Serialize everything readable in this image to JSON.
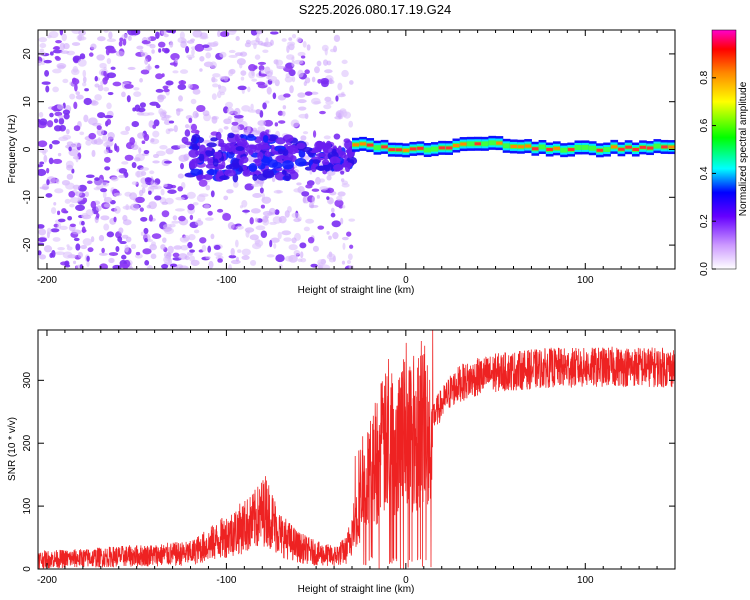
{
  "title": "S225.2026.080.17.19.G24",
  "chart_data": [
    {
      "type": "heatmap",
      "name": "spectrogram",
      "xlabel": "Height of straight line (km)",
      "ylabel": "Frequency (Hz)",
      "xlim": [
        -205,
        150
      ],
      "ylim": [
        -25,
        25
      ],
      "xticks": [
        -200,
        -100,
        0,
        100
      ],
      "yticks": [
        -20,
        -10,
        0,
        10,
        20
      ],
      "colorbar": {
        "label": "Normalized spectral amplitude",
        "range": [
          0,
          1
        ],
        "ticks": [
          0.0,
          0.2,
          0.4,
          0.6,
          0.8
        ]
      },
      "features": [
        {
          "description": "scattered noise",
          "x_range": [
            -205,
            -30
          ],
          "y_range": [
            -25,
            25
          ],
          "amplitude": 0.1
        },
        {
          "description": "emerging carrier",
          "x_range": [
            -120,
            -30
          ],
          "freq_hz": -1.5,
          "amplitude": 0.2
        },
        {
          "description": "strong carrier line",
          "x_range": [
            -30,
            150
          ],
          "freq_hz": 1.5,
          "amplitude": 0.95
        }
      ]
    },
    {
      "type": "line",
      "name": "snr",
      "xlabel": "Height of straight line (km)",
      "ylabel": "SNR (10 * v/v)",
      "xlim": [
        -205,
        150
      ],
      "ylim": [
        0,
        380
      ],
      "xticks": [
        -200,
        -100,
        0,
        100
      ],
      "yticks": [
        0,
        100,
        200,
        300
      ],
      "color": "#ee2222",
      "series": [
        {
          "name": "SNR",
          "x": [
            -205,
            -180,
            -160,
            -140,
            -120,
            -105,
            -95,
            -85,
            -78,
            -70,
            -60,
            -50,
            -40,
            -33,
            -28,
            -20,
            -15,
            -10,
            -5,
            0,
            5,
            10,
            15,
            20,
            25,
            30,
            40,
            50,
            60,
            80,
            100,
            120,
            150
          ],
          "y": [
            15,
            17,
            20,
            22,
            25,
            45,
            60,
            75,
            95,
            55,
            35,
            25,
            20,
            30,
            80,
            150,
            185,
            200,
            210,
            220,
            225,
            232,
            242,
            262,
            283,
            295,
            305,
            312,
            315,
            320,
            320,
            322,
            320
          ]
        }
      ]
    }
  ]
}
